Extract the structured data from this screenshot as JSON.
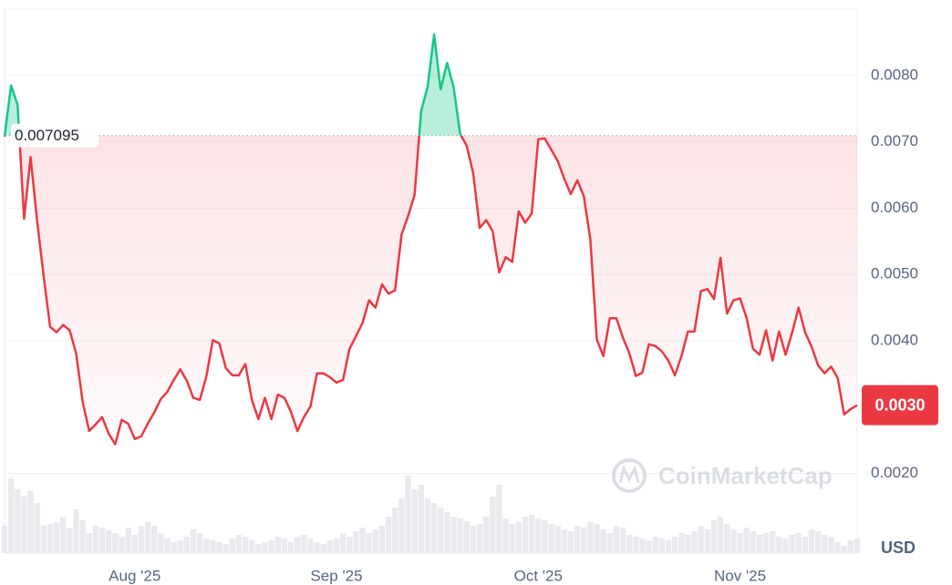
{
  "chart_data": {
    "type": "line",
    "categories": [
      null,
      null,
      null,
      null,
      null,
      null,
      null,
      null,
      null,
      null,
      null,
      null,
      null,
      null,
      null,
      null,
      null,
      null,
      null,
      null,
      "Aug '25",
      null,
      null,
      null,
      null,
      null,
      null,
      null,
      null,
      null,
      null,
      null,
      null,
      null,
      null,
      null,
      null,
      null,
      null,
      null,
      null,
      null,
      null,
      null,
      null,
      null,
      null,
      null,
      null,
      null,
      null,
      "Sep '25",
      null,
      null,
      null,
      null,
      null,
      null,
      null,
      null,
      null,
      null,
      null,
      null,
      null,
      null,
      null,
      null,
      null,
      null,
      null,
      null,
      null,
      null,
      null,
      null,
      null,
      null,
      null,
      null,
      null,
      null,
      "Oct '25",
      null,
      null,
      null,
      null,
      null,
      null,
      null,
      null,
      null,
      null,
      null,
      null,
      null,
      null,
      null,
      null,
      null,
      null,
      null,
      null,
      null,
      null,
      null,
      null,
      null,
      null,
      null,
      null,
      null,
      null,
      "Nov '25",
      null,
      null,
      null,
      null,
      null,
      null,
      null,
      null,
      null,
      null,
      null,
      null,
      null,
      null,
      null,
      null,
      null,
      null
    ],
    "series": [
      {
        "name": "Price",
        "color_up": "#16c784",
        "color_down": "#ea3943",
        "values": [
          0.00708,
          0.00785,
          0.00756,
          0.00584,
          0.00677,
          0.00581,
          0.00498,
          0.00421,
          0.00413,
          0.00424,
          0.00416,
          0.00381,
          0.00308,
          0.00264,
          0.00274,
          0.00285,
          0.0026,
          0.00244,
          0.00281,
          0.00275,
          0.00252,
          0.00256,
          0.00275,
          0.00292,
          0.00312,
          0.00323,
          0.00341,
          0.00357,
          0.0034,
          0.00314,
          0.00311,
          0.00346,
          0.00401,
          0.00396,
          0.00359,
          0.00348,
          0.00348,
          0.00365,
          0.00311,
          0.00282,
          0.00314,
          0.00282,
          0.00319,
          0.00314,
          0.00293,
          0.00264,
          0.00285,
          0.00301,
          0.00351,
          0.00351,
          0.00345,
          0.00337,
          0.00341,
          0.00388,
          0.00407,
          0.00427,
          0.00461,
          0.0045,
          0.00485,
          0.00471,
          0.00476,
          0.0056,
          0.00588,
          0.0062,
          0.00746,
          0.00783,
          0.00862,
          0.00779,
          0.00819,
          0.00782,
          0.00712,
          0.00694,
          0.00653,
          0.0057,
          0.00582,
          0.00565,
          0.00503,
          0.00526,
          0.00519,
          0.00595,
          0.00578,
          0.00592,
          0.00704,
          0.00705,
          0.00688,
          0.00671,
          0.00644,
          0.00621,
          0.00642,
          0.00618,
          0.00553,
          0.00402,
          0.00377,
          0.00434,
          0.00434,
          0.00405,
          0.00381,
          0.00347,
          0.00352,
          0.00395,
          0.00392,
          0.00384,
          0.0037,
          0.00348,
          0.00377,
          0.00414,
          0.00414,
          0.00475,
          0.00478,
          0.00463,
          0.00525,
          0.00441,
          0.00461,
          0.00464,
          0.00435,
          0.00388,
          0.00379,
          0.00416,
          0.0037,
          0.00414,
          0.00379,
          0.00412,
          0.0045,
          0.00413,
          0.00391,
          0.00363,
          0.00351,
          0.00361,
          0.00344,
          0.00289,
          0.00297,
          0.00303
        ]
      },
      {
        "name": "Volume",
        "axis": "y2",
        "color": "#e8eaee",
        "values": [
          30,
          82,
          70,
          62,
          68,
          55,
          30,
          32,
          34,
          40,
          28,
          48,
          36,
          22,
          30,
          28,
          25,
          22,
          18,
          28,
          20,
          30,
          34,
          30,
          22,
          16,
          12,
          14,
          18,
          26,
          22,
          16,
          14,
          12,
          10,
          16,
          20,
          18,
          14,
          10,
          12,
          14,
          18,
          16,
          12,
          18,
          20,
          16,
          12,
          10,
          14,
          16,
          22,
          18,
          24,
          28,
          22,
          26,
          30,
          40,
          50,
          60,
          85,
          70,
          75,
          60,
          55,
          50,
          45,
          40,
          38,
          35,
          30,
          32,
          40,
          62,
          75,
          38,
          32,
          34,
          40,
          42,
          38,
          36,
          32,
          30,
          26,
          24,
          30,
          28,
          34,
          32,
          26,
          22,
          30,
          28,
          20,
          18,
          16,
          14,
          18,
          16,
          14,
          18,
          22,
          20,
          24,
          30,
          26,
          36,
          40,
          32,
          26,
          22,
          28,
          24,
          20,
          22,
          24,
          18,
          16,
          20,
          22,
          18,
          26,
          24,
          20,
          18,
          12,
          8,
          14,
          16
        ]
      }
    ],
    "baseline": {
      "value": 0.007095,
      "label": "0.007095"
    },
    "last_price_label": "0.0030",
    "ylim": [
      0.0008,
      0.009
    ],
    "yticks": [
      {
        "value": 0.002,
        "label": "0.0020"
      },
      {
        "value": 0.004,
        "label": "0.0040"
      },
      {
        "value": 0.005,
        "label": "0.0050"
      },
      {
        "value": 0.006,
        "label": "0.0060"
      },
      {
        "value": 0.007,
        "label": "0.0070"
      },
      {
        "value": 0.008,
        "label": "0.0080"
      }
    ],
    "y2lim": [
      0,
      100
    ],
    "grid": true,
    "currency": "USD",
    "watermark": "CoinMarketCap"
  }
}
